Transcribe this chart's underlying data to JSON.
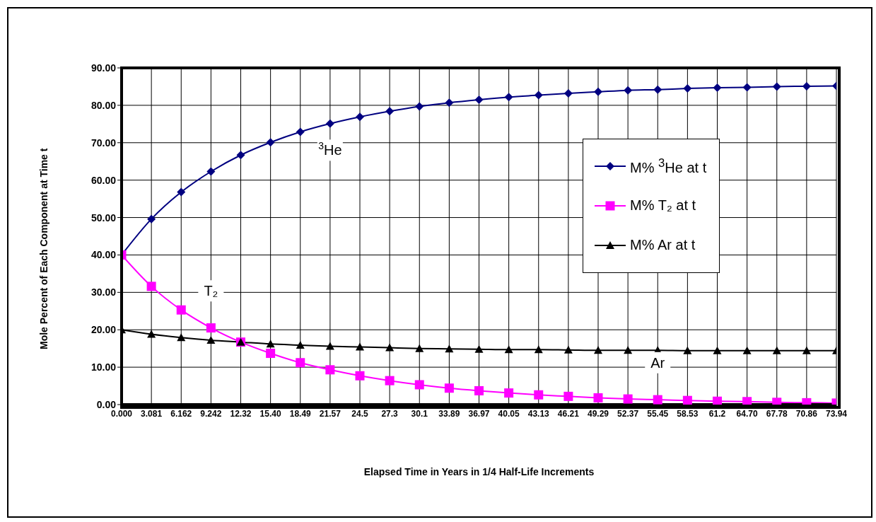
{
  "chart_data": {
    "type": "line",
    "xlabel": "Elapsed Time in Years in 1/4 Half-Life Increments",
    "ylabel": "Mole Percent of Each Component at Time t",
    "categories": [
      "0.000",
      "3.081",
      "6.162",
      "9.242",
      "12.32",
      "15.40",
      "18.49",
      "21.57",
      "24.5",
      "27.3",
      "30.1",
      "33.89",
      "36.97",
      "40.05",
      "43.13",
      "46.21",
      "49.29",
      "52.37",
      "55.45",
      "58.53",
      "61.2",
      "64.70",
      "67.78",
      "70.86",
      "73.94"
    ],
    "series": [
      {
        "name": "M% $^{3}$He at t",
        "color": "#000080",
        "marker": "diamond",
        "values": [
          40,
          49.6,
          56.8,
          62.3,
          66.7,
          70.1,
          72.9,
          75.1,
          76.9,
          78.4,
          79.7,
          80.7,
          81.5,
          82.2,
          82.7,
          83.2,
          83.6,
          84.0,
          84.2,
          84.5,
          84.7,
          84.8,
          85.0,
          85.1,
          85.2
        ]
      },
      {
        "name": "M% T₂ at t",
        "color": "#ff00ff",
        "marker": "square",
        "values": [
          40,
          31.6,
          25.3,
          20.5,
          16.7,
          13.7,
          11.2,
          9.3,
          7.7,
          6.4,
          5.3,
          4.4,
          3.7,
          3.1,
          2.6,
          2.2,
          1.8,
          1.5,
          1.3,
          1.1,
          0.9,
          0.8,
          0.6,
          0.5,
          0.4
        ]
      },
      {
        "name": "M% Ar at t",
        "color": "#000000",
        "marker": "triangle",
        "values": [
          20,
          18.8,
          17.9,
          17.2,
          16.7,
          16.2,
          15.9,
          15.6,
          15.4,
          15.2,
          15.0,
          14.9,
          14.8,
          14.7,
          14.7,
          14.6,
          14.5,
          14.5,
          14.5,
          14.4,
          14.4,
          14.4,
          14.4,
          14.4,
          14.4
        ]
      }
    ],
    "ylim": [
      0,
      90
    ],
    "yticks": [
      {
        "value": 0,
        "label": "0.00"
      },
      {
        "value": 10,
        "label": "10.00"
      },
      {
        "value": 20,
        "label": "20.00"
      },
      {
        "value": 30,
        "label": "30.00"
      },
      {
        "value": 40,
        "label": "40.00"
      },
      {
        "value": 50,
        "label": "50.00"
      },
      {
        "value": 60,
        "label": "60.00"
      },
      {
        "value": 70,
        "label": "70.00"
      },
      {
        "value": 80,
        "label": "80.00"
      },
      {
        "value": 90,
        "label": "90.00"
      }
    ],
    "grid": true,
    "legend": "right",
    "line_style": "solid",
    "annotations": [
      {
        "text": "$^{3}$He",
        "x": "21.57",
        "y": 68
      },
      {
        "text": "T₂",
        "x": "9.242",
        "y": 30.4
      },
      {
        "text": "Ar",
        "x": "55.45",
        "y": 11.2
      }
    ]
  }
}
